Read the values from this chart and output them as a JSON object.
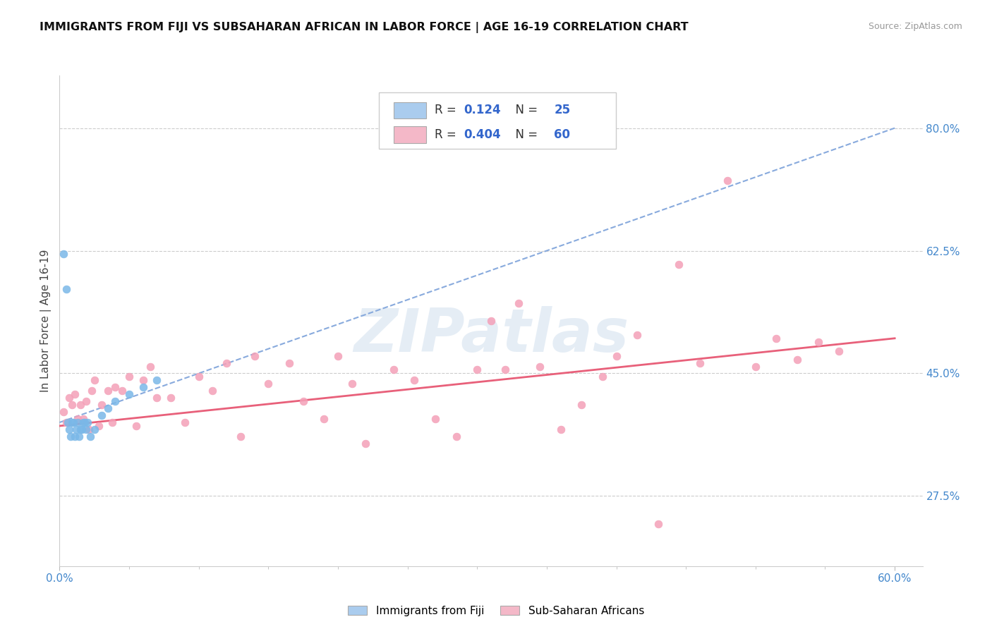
{
  "title": "IMMIGRANTS FROM FIJI VS SUBSAHARAN AFRICAN IN LABOR FORCE | AGE 16-19 CORRELATION CHART",
  "source": "Source: ZipAtlas.com",
  "ylabel": "In Labor Force | Age 16-19",
  "xlim": [
    0.0,
    0.62
  ],
  "ylim": [
    0.175,
    0.875
  ],
  "yticks_right": [
    0.275,
    0.45,
    0.625,
    0.8
  ],
  "ytick_right_labels": [
    "27.5%",
    "45.0%",
    "62.5%",
    "80.0%"
  ],
  "fiji_R": 0.124,
  "fiji_N": 25,
  "ssa_R": 0.404,
  "ssa_N": 60,
  "fiji_scatter_color": "#7ab8e8",
  "ssa_scatter_color": "#f4a0b8",
  "fiji_line_color": "#88aadd",
  "ssa_line_color": "#e8607a",
  "fiji_legend_color": "#aaccee",
  "ssa_legend_color": "#f4b8c8",
  "fiji_x": [
    0.003,
    0.005,
    0.006,
    0.007,
    0.008,
    0.009,
    0.01,
    0.011,
    0.012,
    0.013,
    0.014,
    0.015,
    0.016,
    0.017,
    0.018,
    0.019,
    0.02,
    0.022,
    0.025,
    0.03,
    0.035,
    0.04,
    0.05,
    0.06,
    0.07
  ],
  "fiji_y": [
    0.62,
    0.57,
    0.38,
    0.37,
    0.36,
    0.38,
    0.38,
    0.36,
    0.37,
    0.38,
    0.36,
    0.37,
    0.37,
    0.38,
    0.38,
    0.37,
    0.38,
    0.36,
    0.37,
    0.39,
    0.4,
    0.41,
    0.42,
    0.43,
    0.44
  ],
  "ssa_x": [
    0.003,
    0.005,
    0.007,
    0.009,
    0.011,
    0.013,
    0.015,
    0.017,
    0.019,
    0.021,
    0.023,
    0.025,
    0.028,
    0.03,
    0.035,
    0.038,
    0.04,
    0.045,
    0.05,
    0.055,
    0.06,
    0.065,
    0.07,
    0.08,
    0.09,
    0.1,
    0.11,
    0.12,
    0.13,
    0.14,
    0.15,
    0.165,
    0.175,
    0.19,
    0.2,
    0.21,
    0.22,
    0.24,
    0.255,
    0.27,
    0.285,
    0.3,
    0.31,
    0.32,
    0.33,
    0.345,
    0.36,
    0.375,
    0.39,
    0.4,
    0.415,
    0.43,
    0.445,
    0.46,
    0.48,
    0.5,
    0.515,
    0.53,
    0.545,
    0.56
  ],
  "ssa_y": [
    0.395,
    0.38,
    0.415,
    0.405,
    0.42,
    0.385,
    0.405,
    0.385,
    0.41,
    0.37,
    0.425,
    0.44,
    0.375,
    0.405,
    0.425,
    0.38,
    0.43,
    0.425,
    0.445,
    0.375,
    0.44,
    0.46,
    0.415,
    0.415,
    0.38,
    0.445,
    0.425,
    0.465,
    0.36,
    0.475,
    0.435,
    0.465,
    0.41,
    0.385,
    0.475,
    0.435,
    0.35,
    0.455,
    0.44,
    0.385,
    0.36,
    0.455,
    0.525,
    0.455,
    0.55,
    0.46,
    0.37,
    0.405,
    0.445,
    0.475,
    0.505,
    0.235,
    0.605,
    0.465,
    0.725,
    0.46,
    0.5,
    0.47,
    0.495,
    0.482
  ],
  "fiji_trendline_x0": 0.0,
  "fiji_trendline_x1": 0.6,
  "fiji_trendline_y0": 0.38,
  "fiji_trendline_y1": 0.8,
  "ssa_trendline_x0": 0.0,
  "ssa_trendline_x1": 0.6,
  "ssa_trendline_y0": 0.375,
  "ssa_trendline_y1": 0.5
}
